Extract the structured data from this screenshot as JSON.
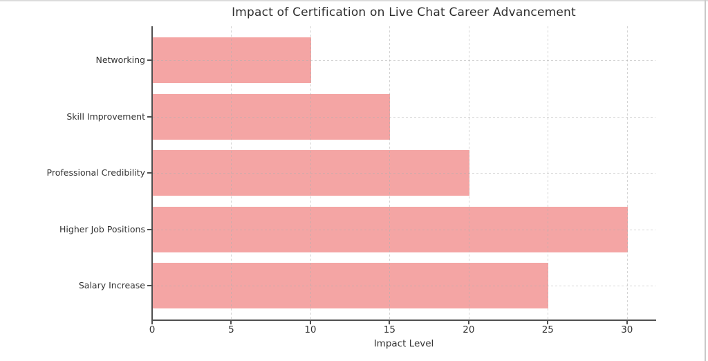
{
  "chart_data": {
    "type": "bar",
    "orientation": "horizontal",
    "title": "Impact of Certification on Live Chat Career Advancement",
    "xlabel": "Impact Level",
    "ylabel": "",
    "categories": [
      "Networking",
      "Skill Improvement",
      "Professional Credibility",
      "Higher Job Positions",
      "Salary Increase"
    ],
    "values": [
      10,
      15,
      20,
      30,
      25
    ],
    "x_ticks": [
      0,
      5,
      10,
      15,
      20,
      25,
      30
    ],
    "xlim": [
      0,
      31.8
    ],
    "grid": {
      "visible": true,
      "style": "dashed",
      "axis": "both"
    },
    "legend": "none",
    "colors": {
      "bar": "#f4a5a4",
      "axis": "#4f4f4f",
      "grid": "#d9d9d9",
      "tick_text": "#333333",
      "title_text": "#2e2e2e",
      "background": "#ffffff"
    }
  }
}
